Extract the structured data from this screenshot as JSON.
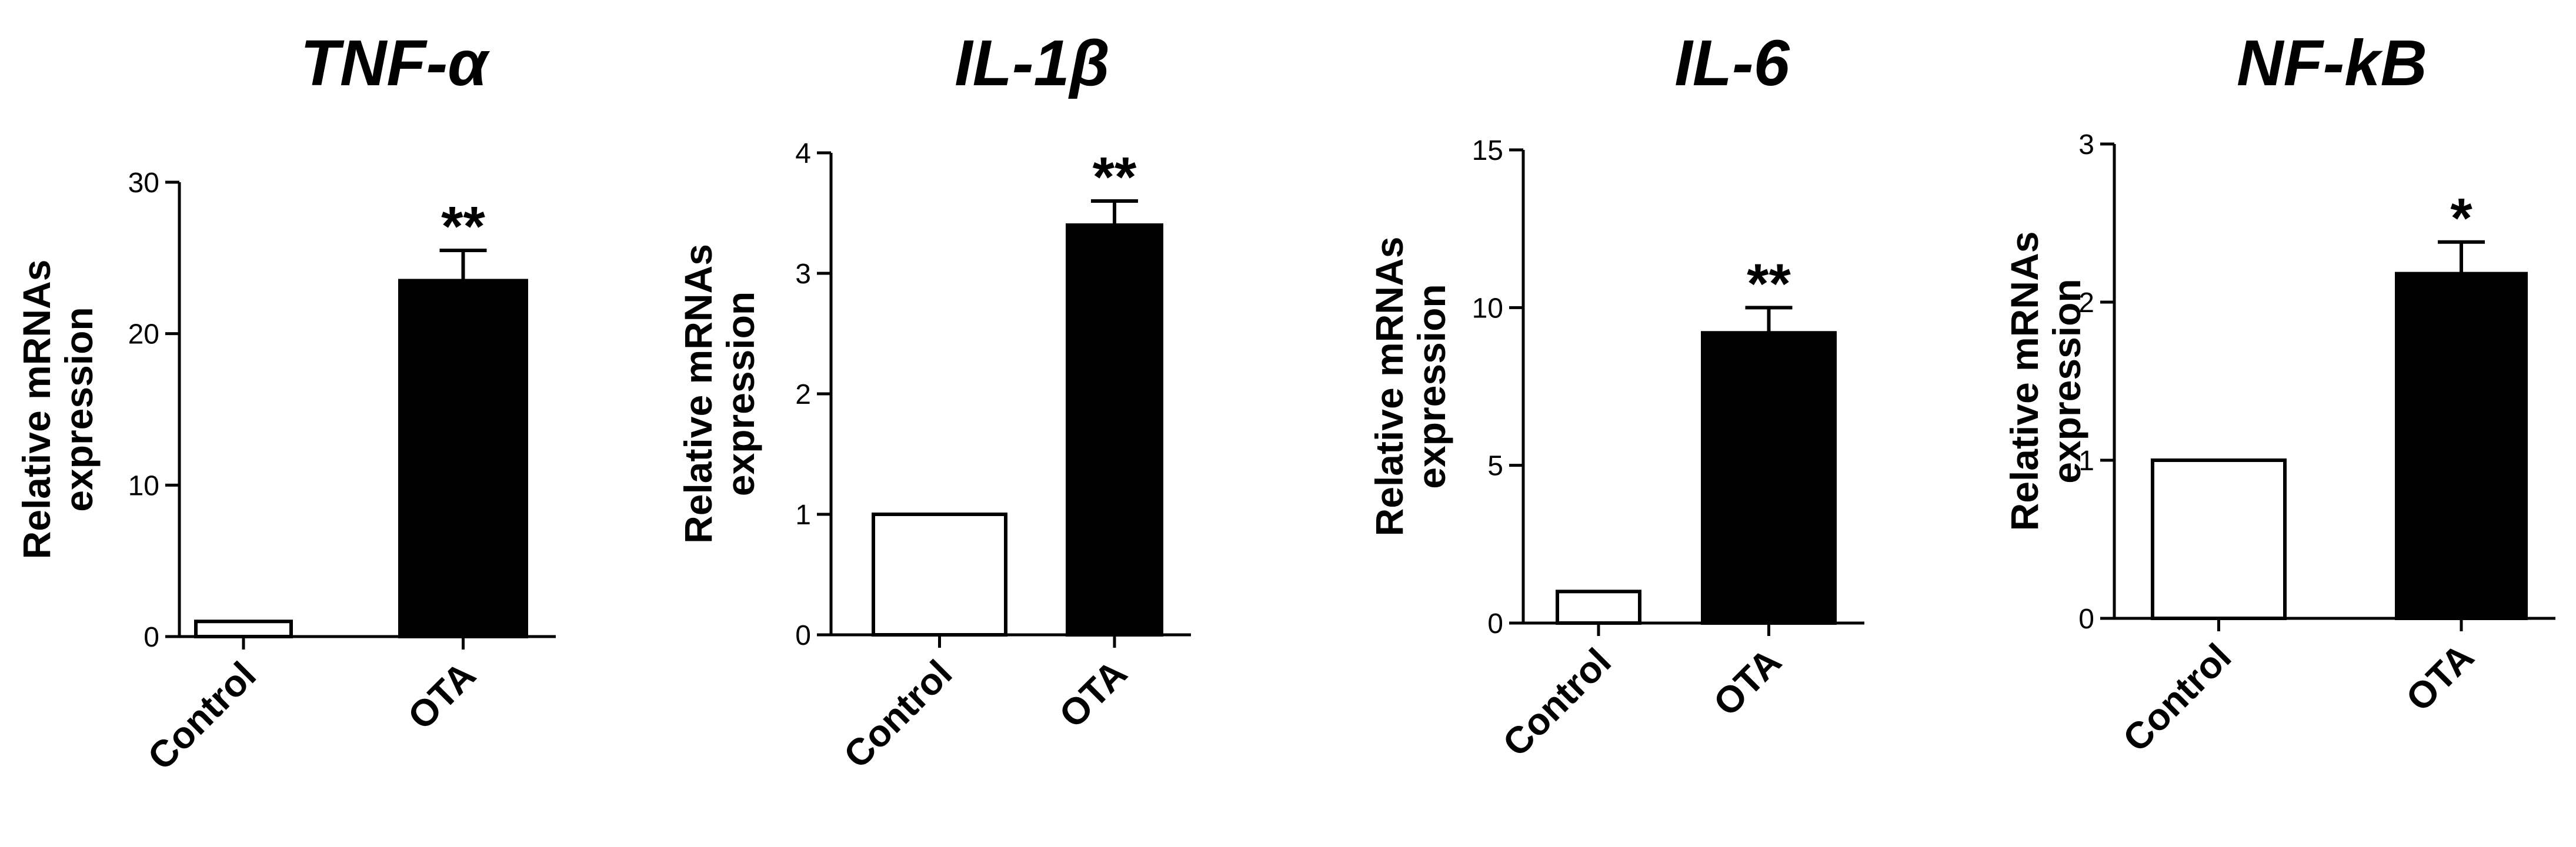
{
  "chart_data": [
    {
      "type": "bar",
      "title": "TNF-α",
      "ylabel": [
        "Relative mRNAs",
        "expression"
      ],
      "categories": [
        "Control",
        "OTA"
      ],
      "values": [
        1,
        23.5
      ],
      "errors": [
        0,
        2
      ],
      "significance": [
        "",
        "**"
      ],
      "fills": [
        "#ffffff",
        "#000000"
      ],
      "ylim": [
        0,
        30
      ],
      "yticks": [
        0,
        10,
        20,
        30
      ]
    },
    {
      "type": "bar",
      "title": "IL-1β",
      "ylabel": [
        "Relative mRNAs",
        "expression"
      ],
      "categories": [
        "Control",
        "OTA"
      ],
      "values": [
        1,
        3.4
      ],
      "errors": [
        0,
        0.2
      ],
      "significance": [
        "",
        "**"
      ],
      "fills": [
        "#ffffff",
        "#000000"
      ],
      "ylim": [
        0,
        4
      ],
      "yticks": [
        0,
        1,
        2,
        3,
        4
      ]
    },
    {
      "type": "bar",
      "title": "IL-6",
      "ylabel": [
        "Relative mRNAs",
        "expression"
      ],
      "categories": [
        "Control",
        "OTA"
      ],
      "values": [
        1,
        9.2
      ],
      "errors": [
        0,
        0.8
      ],
      "significance": [
        "",
        "**"
      ],
      "fills": [
        "#ffffff",
        "#000000"
      ],
      "ylim": [
        0,
        15
      ],
      "yticks": [
        0,
        5,
        10,
        15
      ]
    },
    {
      "type": "bar",
      "title": "NF-kB",
      "ylabel": [
        "Relative mRNAs",
        "expression"
      ],
      "categories": [
        "Control",
        "OTA"
      ],
      "values": [
        1,
        2.18
      ],
      "errors": [
        0,
        0.2
      ],
      "significance": [
        "",
        "*"
      ],
      "fills": [
        "#ffffff",
        "#000000"
      ],
      "ylim": [
        0,
        3
      ],
      "yticks": [
        0,
        1,
        2,
        3
      ]
    }
  ]
}
